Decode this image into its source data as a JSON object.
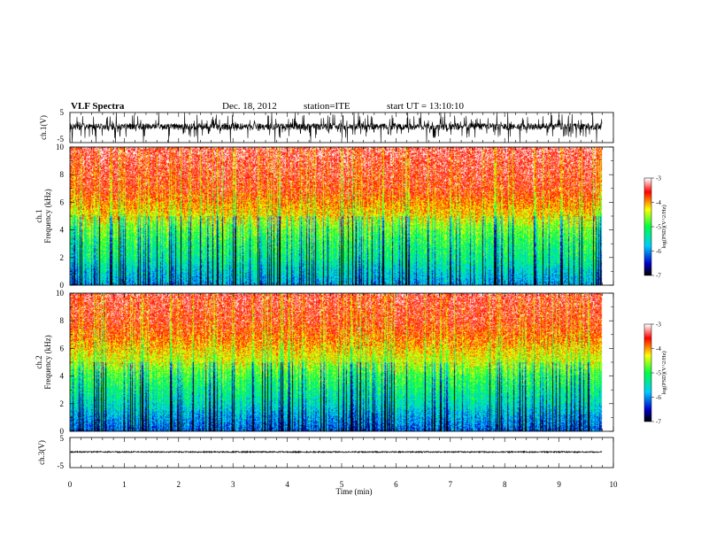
{
  "header": {
    "title": "VLF Spectra",
    "date": "Dec. 18, 2012",
    "station": "station=ITE",
    "start": "start UT = 13:10:10"
  },
  "colors": {
    "trace": "#000000",
    "colormap": [
      "#000000",
      "#0000cc",
      "#00ccff",
      "#00ff44",
      "#ffff00",
      "#ff0000",
      "#ffffff"
    ]
  },
  "chart_data": [
    {
      "type": "line",
      "panel": "ch1-waveform",
      "ylabel": "ch.1(V)",
      "yticks": [
        "5",
        "-5"
      ],
      "ylim": [
        -5,
        5
      ],
      "x_unit": "min",
      "xlim": [
        0,
        10
      ],
      "data_end_min": 9.8,
      "mean": 0.3,
      "spread": [
        -3.5,
        4.5
      ]
    },
    {
      "type": "heatmap",
      "panel": "ch1-spectrogram",
      "ylabel": "Frequency (kHz)",
      "ylabel_channel": "ch.1",
      "yticks": [
        "0",
        "2",
        "4",
        "6",
        "8",
        "10"
      ],
      "ylim": [
        0,
        10
      ],
      "xlim": [
        0,
        10
      ],
      "data_end_min": 9.8,
      "colorbar": {
        "label": "log(PSD)(V^2/Hz)",
        "ticks": [
          "-3",
          "-4",
          "-5",
          "-6",
          "-7"
        ],
        "range": [
          -7,
          -3
        ]
      },
      "profile_khz": [
        0,
        1,
        2,
        3,
        4,
        5,
        6,
        7,
        8,
        9,
        10
      ],
      "profile_log_psd": [
        -5.9,
        -5.6,
        -5.2,
        -5.0,
        -4.7,
        -4.2,
        -3.9,
        -3.6,
        -3.5,
        -3.4,
        -3.3
      ]
    },
    {
      "type": "heatmap",
      "panel": "ch2-spectrogram",
      "ylabel": "Frequency (kHz)",
      "ylabel_channel": "ch.2",
      "yticks": [
        "0",
        "2",
        "4",
        "6",
        "8",
        "10"
      ],
      "ylim": [
        0,
        10
      ],
      "xlim": [
        0,
        10
      ],
      "data_end_min": 9.8,
      "colorbar": {
        "label": "log(PSD)(V^2/Hz)",
        "ticks": [
          "-3",
          "-4",
          "-5",
          "-6",
          "-7"
        ],
        "range": [
          -7,
          -3
        ]
      },
      "profile_khz": [
        0,
        1,
        2,
        3,
        4,
        5,
        6,
        7,
        8,
        9,
        10
      ],
      "profile_log_psd": [
        -6.2,
        -5.9,
        -5.5,
        -5.2,
        -4.9,
        -4.4,
        -4.1,
        -3.8,
        -3.6,
        -3.5,
        -3.4
      ]
    },
    {
      "type": "line",
      "panel": "ch3-waveform",
      "ylabel": "ch.3(V)",
      "yticks": [
        "5",
        "-5"
      ],
      "ylim": [
        -5,
        5
      ],
      "xlim": [
        0,
        10
      ],
      "data_end_min": 9.8,
      "mean": 0.2,
      "spread": [
        0.0,
        0.4
      ]
    }
  ],
  "xaxis": {
    "label": "Time (min)",
    "ticks": [
      "0",
      "1",
      "2",
      "3",
      "4",
      "5",
      "6",
      "7",
      "8",
      "9",
      "10"
    ]
  }
}
